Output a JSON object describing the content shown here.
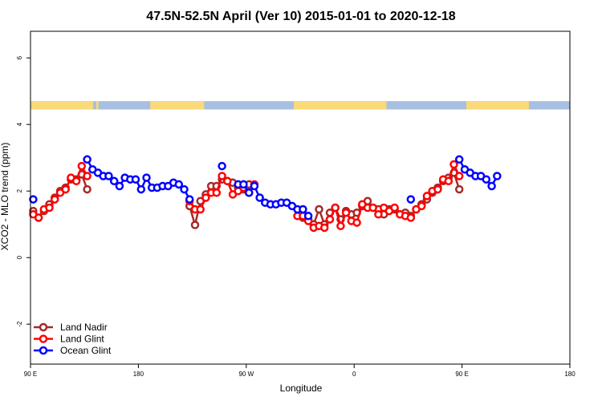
{
  "colors": {
    "land_nadir": "#a52a2a",
    "land_glint": "#ff0000",
    "ocean_glint": "#0000ff",
    "land_band": "#f9d97a",
    "ocean_band": "#a7bfe0"
  },
  "chart_data": {
    "type": "line",
    "title": "47.5N-52.5N April (Ver 10)   2015-01-01 to 2020-12-18",
    "xlabel": "Longitude",
    "ylabel": "XCO2 - MLO trend (ppm)",
    "xlim": [
      -90,
      410
    ],
    "ylim": [
      -3.2,
      6.8
    ],
    "x_ticks": [
      {
        "x": -90,
        "label": "90 E"
      },
      {
        "x": 10,
        "label": "180"
      },
      {
        "x": 110,
        "label": "90 W"
      },
      {
        "x": 210,
        "label": "0"
      },
      {
        "x": 310,
        "label": "90 E"
      },
      {
        "x": 410,
        "label": "180"
      }
    ],
    "y_ticks": [
      {
        "y": -2,
        "label": "-2"
      },
      {
        "y": 0,
        "label": "0"
      },
      {
        "y": 2,
        "label": "2"
      },
      {
        "y": 4,
        "label": "4"
      },
      {
        "y": 6,
        "label": "6"
      }
    ],
    "grid": false,
    "legend_position": "bottom-left",
    "surface_band": {
      "y_range": [
        4.45,
        4.7
      ],
      "land_segments": [
        [
          -90,
          -32
        ],
        [
          -29,
          -28
        ],
        [
          -28,
          -27
        ],
        [
          21,
          71
        ],
        [
          154,
          240
        ],
        [
          314,
          372
        ]
      ]
    },
    "series": [
      {
        "name": "Land Nadir",
        "color": "#a52a2a",
        "segments": [
          [
            [
              -87.5,
              1.4
            ],
            [
              -82.5,
              1.2
            ],
            [
              -77.5,
              1.4
            ],
            [
              -72.5,
              1.6
            ],
            [
              -67.5,
              1.8
            ],
            [
              -62.5,
              2.0
            ],
            [
              -57.5,
              2.1
            ],
            [
              -52.5,
              2.35
            ],
            [
              -47.5,
              2.35
            ],
            [
              -42.5,
              2.5
            ],
            [
              -37.5,
              2.05
            ]
          ],
          [
            [
              57.5,
              1.55
            ],
            [
              62.5,
              0.98
            ],
            [
              67.5,
              1.7
            ],
            [
              72.5,
              1.9
            ],
            [
              77.5,
              2.15
            ],
            [
              82.5,
              2.15
            ],
            [
              87.5,
              2.35
            ],
            [
              92.5,
              2.3
            ],
            [
              97.5,
              2.25
            ],
            [
              102.5,
              2.1
            ],
            [
              107.5,
              2.05
            ],
            [
              112.5,
              2.2
            ]
          ],
          [
            [
              157.5,
              1.25
            ],
            [
              162.5,
              1.2
            ],
            [
              167.5,
              1.15
            ],
            [
              172.5,
              1.0
            ],
            [
              177.5,
              1.45
            ],
            [
              182.5,
              1.0
            ],
            [
              187.5,
              1.35
            ],
            [
              192.5,
              1.5
            ],
            [
              197.5,
              1.15
            ],
            [
              202.5,
              1.4
            ],
            [
              207.5,
              1.3
            ],
            [
              212.5,
              1.35
            ],
            [
              217.5,
              1.55
            ],
            [
              222.5,
              1.7
            ],
            [
              227.5,
              1.5
            ],
            [
              232.5,
              1.45
            ],
            [
              237.5,
              1.3
            ],
            [
              242.5,
              1.45
            ],
            [
              247.5,
              1.45
            ],
            [
              252.5,
              1.3
            ],
            [
              257.5,
              1.35
            ],
            [
              262.5,
              1.25
            ],
            [
              267.5,
              1.45
            ],
            [
              272.5,
              1.6
            ],
            [
              277.5,
              1.75
            ],
            [
              282.5,
              1.95
            ],
            [
              287.5,
              2.1
            ],
            [
              292.5,
              2.3
            ],
            [
              297.5,
              2.4
            ],
            [
              302.5,
              2.55
            ],
            [
              307.5,
              2.05
            ]
          ]
        ]
      },
      {
        "name": "Land Glint",
        "color": "#ff0000",
        "segments": [
          [
            [
              -87.5,
              1.3
            ],
            [
              -82.5,
              1.2
            ],
            [
              -77.5,
              1.45
            ],
            [
              -72.5,
              1.5
            ],
            [
              -67.5,
              1.75
            ],
            [
              -62.5,
              1.95
            ],
            [
              -57.5,
              2.05
            ],
            [
              -52.5,
              2.4
            ],
            [
              -47.5,
              2.3
            ],
            [
              -42.5,
              2.75
            ],
            [
              -37.5,
              2.45
            ]
          ],
          [
            [
              57.5,
              1.7
            ],
            [
              62.5,
              1.45
            ],
            [
              67.5,
              1.45
            ],
            [
              72.5,
              1.8
            ],
            [
              77.5,
              1.95
            ],
            [
              82.5,
              1.95
            ],
            [
              87.5,
              2.45
            ],
            [
              92.5,
              2.3
            ],
            [
              97.5,
              1.9
            ],
            [
              102.5,
              2.0
            ],
            [
              107.5,
              2.1
            ],
            [
              112.5,
              1.95
            ],
            [
              117.5,
              2.2
            ]
          ],
          [
            [
              157.5,
              1.25
            ],
            [
              162.5,
              1.25
            ],
            [
              167.5,
              1.1
            ],
            [
              172.5,
              0.9
            ],
            [
              177.5,
              0.95
            ],
            [
              182.5,
              0.9
            ],
            [
              187.5,
              1.15
            ],
            [
              192.5,
              1.5
            ],
            [
              197.5,
              0.95
            ],
            [
              202.5,
              1.35
            ],
            [
              207.5,
              1.1
            ],
            [
              212.5,
              1.05
            ],
            [
              217.5,
              1.6
            ],
            [
              222.5,
              1.5
            ],
            [
              227.5,
              1.5
            ],
            [
              232.5,
              1.3
            ],
            [
              237.5,
              1.5
            ],
            [
              242.5,
              1.4
            ],
            [
              247.5,
              1.5
            ],
            [
              252.5,
              1.3
            ],
            [
              257.5,
              1.25
            ],
            [
              262.5,
              1.2
            ],
            [
              267.5,
              1.45
            ],
            [
              272.5,
              1.55
            ],
            [
              277.5,
              1.85
            ],
            [
              282.5,
              2.0
            ],
            [
              287.5,
              2.05
            ],
            [
              292.5,
              2.35
            ],
            [
              297.5,
              2.3
            ],
            [
              302.5,
              2.8
            ],
            [
              307.5,
              2.45
            ]
          ]
        ]
      },
      {
        "name": "Ocean Glint",
        "color": "#0000ff",
        "segments": [
          [
            [
              -87.5,
              1.75
            ]
          ],
          [
            [
              -37.5,
              2.95
            ],
            [
              -32.5,
              2.65
            ],
            [
              -27.5,
              2.55
            ],
            [
              -22.5,
              2.45
            ],
            [
              -17.5,
              2.45
            ],
            [
              -12.5,
              2.3
            ],
            [
              -7.5,
              2.15
            ],
            [
              -2.5,
              2.4
            ],
            [
              2.5,
              2.35
            ],
            [
              7.5,
              2.35
            ],
            [
              12.5,
              2.05
            ],
            [
              17.5,
              2.4
            ],
            [
              22.5,
              2.1
            ],
            [
              27.5,
              2.1
            ],
            [
              32.5,
              2.15
            ],
            [
              37.5,
              2.15
            ],
            [
              42.5,
              2.25
            ],
            [
              47.5,
              2.2
            ],
            [
              52.5,
              2.05
            ],
            [
              57.5,
              1.75
            ]
          ],
          [
            [
              87.5,
              2.75
            ]
          ],
          [
            [
              102.5,
              2.2
            ],
            [
              107.5,
              2.2
            ],
            [
              112.5,
              1.95
            ],
            [
              117.5,
              2.15
            ],
            [
              122.5,
              1.8
            ],
            [
              127.5,
              1.65
            ],
            [
              132.5,
              1.6
            ],
            [
              137.5,
              1.6
            ],
            [
              142.5,
              1.65
            ],
            [
              147.5,
              1.65
            ],
            [
              152.5,
              1.55
            ],
            [
              157.5,
              1.45
            ],
            [
              162.5,
              1.45
            ],
            [
              167.5,
              1.25
            ]
          ],
          [
            [
              262.5,
              1.75
            ]
          ],
          [
            [
              307.5,
              2.95
            ],
            [
              312.5,
              2.65
            ],
            [
              317.5,
              2.55
            ],
            [
              322.5,
              2.45
            ],
            [
              327.5,
              2.45
            ],
            [
              332.5,
              2.35
            ],
            [
              337.5,
              2.15
            ],
            [
              342.5,
              2.45
            ]
          ]
        ]
      }
    ]
  }
}
